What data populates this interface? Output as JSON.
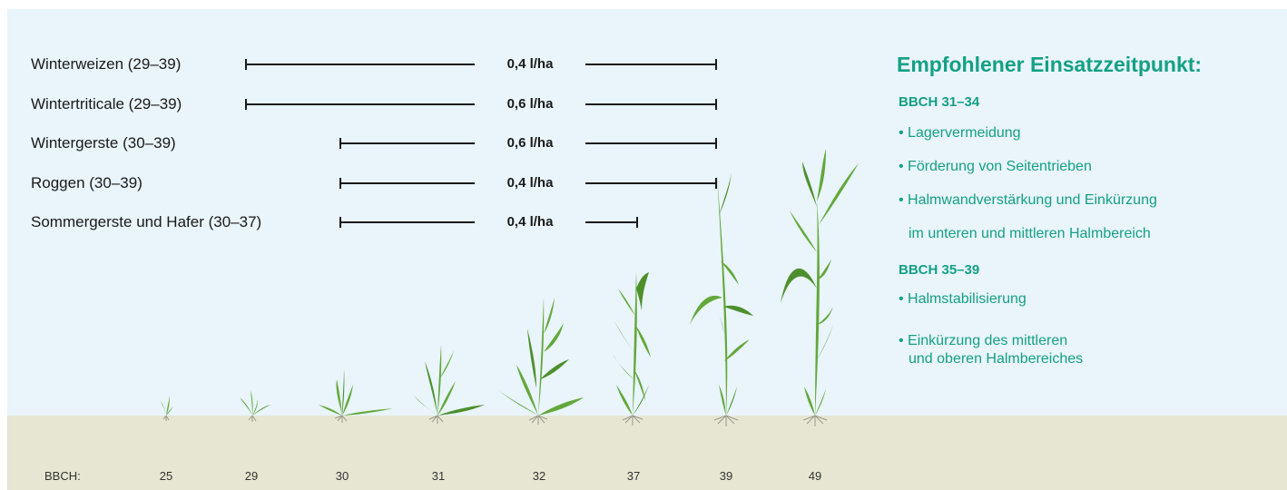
{
  "colors": {
    "sky": "#e9f4fb",
    "ground": "#e7e6d2",
    "accent": "#14a085",
    "plant": "#62a83a",
    "plant_dark": "#4e8f2d",
    "root": "#9a9a8e",
    "line": "#1a1a1a"
  },
  "crops": [
    {
      "label": "Winterweizen (29–39)",
      "dose": "0,4 l/ha",
      "start_stage": "29",
      "end_stage": "39"
    },
    {
      "label": "Wintertriticale (29–39)",
      "dose": "0,6 l/ha",
      "start_stage": "29",
      "end_stage": "39"
    },
    {
      "label": "Wintergerste (30–39)",
      "dose": "0,6 l/ha",
      "start_stage": "30",
      "end_stage": "39"
    },
    {
      "label": "Roggen (30–39)",
      "dose": "0,4 l/ha",
      "start_stage": "30",
      "end_stage": "39"
    },
    {
      "label": "Sommergerste und Hafer (30–37)",
      "dose": "0,4 l/ha",
      "start_stage": "30",
      "end_stage": "37"
    }
  ],
  "bbch": {
    "prefix": "BBCH:",
    "stages": [
      "25",
      "29",
      "30",
      "31",
      "32",
      "37",
      "39",
      "49"
    ]
  },
  "plant_icons": [
    "plant-bbch-25-icon",
    "plant-bbch-29-icon",
    "plant-bbch-30-icon",
    "plant-bbch-31-icon",
    "plant-bbch-32-icon",
    "plant-bbch-37-icon",
    "plant-bbch-39-icon",
    "plant-bbch-49-icon"
  ],
  "panel": {
    "title": "Empfohlener Einsatzzeitpunkt:",
    "section1": {
      "heading": "BBCH 31–34",
      "items": [
        "• Lagervermeidung",
        "• Förderung von Seitentrieben",
        "• Halmwandverstärkung und Einkürzung"
      ],
      "continuation": "im unteren und mittleren Halmbereich"
    },
    "section2": {
      "heading": "BBCH 35–39",
      "items": [
        "• Halmstabilisierung",
        "• Einkürzung des mittleren"
      ],
      "continuation": "und oberen Halmbereiches"
    }
  }
}
